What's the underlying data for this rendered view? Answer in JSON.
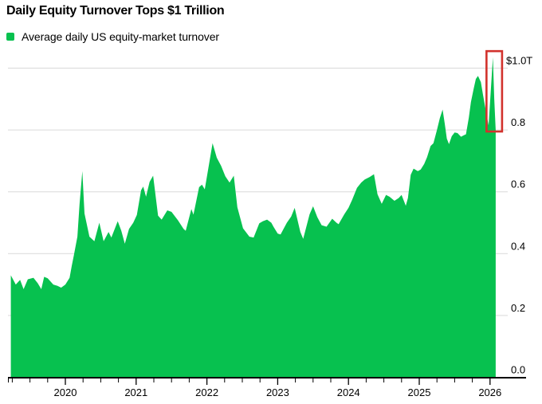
{
  "title": "Daily Equity Turnover Tops $1 Trillion",
  "legend": {
    "label": "Average daily US equity-market turnover",
    "swatch_icon": "green-square",
    "swatch_color": "#07c14f"
  },
  "colors": {
    "area_green": "#07c14f",
    "highlight_red": "#d2322d",
    "gridline": "#d9d9d9",
    "axis": "#000000",
    "text": "#000000",
    "background": "#ffffff"
  },
  "chart_data": {
    "type": "area",
    "title": "Daily Equity Turnover Tops $1 Trillion",
    "series_name": "Average daily US equity-market turnover",
    "x_unit": "year",
    "y_unit": "USD trillions per day",
    "xlim": [
      2019.15,
      2026.5
    ],
    "ylim": [
      0,
      1.07
    ],
    "grid": "horizontal",
    "legend_position": "top-left",
    "y_ticks": [
      {
        "value": 1.0,
        "label": "$1.0T"
      },
      {
        "value": 0.8,
        "label": "0.8"
      },
      {
        "value": 0.6,
        "label": "0.6"
      },
      {
        "value": 0.4,
        "label": "0.4"
      },
      {
        "value": 0.2,
        "label": "0.2"
      },
      {
        "value": 0.0,
        "label": "0.0"
      }
    ],
    "x_ticks": [
      {
        "value": 2020,
        "label": "2020"
      },
      {
        "value": 2021,
        "label": "2021"
      },
      {
        "value": 2022,
        "label": "2022"
      },
      {
        "value": 2023,
        "label": "2023"
      },
      {
        "value": 2024,
        "label": "2024"
      },
      {
        "value": 2025,
        "label": "2025"
      },
      {
        "value": 2026,
        "label": "2026"
      }
    ],
    "minor_tick_step": 0.25,
    "points": [
      [
        2019.23,
        0.33
      ],
      [
        2019.3,
        0.3
      ],
      [
        2019.36,
        0.315
      ],
      [
        2019.41,
        0.285
      ],
      [
        2019.47,
        0.317
      ],
      [
        2019.55,
        0.322
      ],
      [
        2019.61,
        0.304
      ],
      [
        2019.66,
        0.285
      ],
      [
        2019.7,
        0.325
      ],
      [
        2019.75,
        0.32
      ],
      [
        2019.83,
        0.3
      ],
      [
        2019.89,
        0.296
      ],
      [
        2019.94,
        0.29
      ],
      [
        2020.0,
        0.3
      ],
      [
        2020.06,
        0.322
      ],
      [
        2020.09,
        0.36
      ],
      [
        2020.12,
        0.395
      ],
      [
        2020.17,
        0.455
      ],
      [
        2020.2,
        0.56
      ],
      [
        2020.24,
        0.667
      ],
      [
        2020.27,
        0.53
      ],
      [
        2020.34,
        0.455
      ],
      [
        2020.41,
        0.44
      ],
      [
        2020.48,
        0.5
      ],
      [
        2020.54,
        0.44
      ],
      [
        2020.61,
        0.47
      ],
      [
        2020.65,
        0.452
      ],
      [
        2020.74,
        0.505
      ],
      [
        2020.79,
        0.474
      ],
      [
        2020.84,
        0.432
      ],
      [
        2020.9,
        0.48
      ],
      [
        2020.96,
        0.5
      ],
      [
        2021.01,
        0.525
      ],
      [
        2021.07,
        0.605
      ],
      [
        2021.1,
        0.617
      ],
      [
        2021.14,
        0.584
      ],
      [
        2021.19,
        0.632
      ],
      [
        2021.24,
        0.652
      ],
      [
        2021.31,
        0.523
      ],
      [
        2021.36,
        0.51
      ],
      [
        2021.44,
        0.54
      ],
      [
        2021.5,
        0.535
      ],
      [
        2021.59,
        0.508
      ],
      [
        2021.67,
        0.48
      ],
      [
        2021.7,
        0.474
      ],
      [
        2021.78,
        0.544
      ],
      [
        2021.81,
        0.526
      ],
      [
        2021.89,
        0.615
      ],
      [
        2021.93,
        0.623
      ],
      [
        2021.97,
        0.608
      ],
      [
        2022.03,
        0.69
      ],
      [
        2022.08,
        0.757
      ],
      [
        2022.14,
        0.71
      ],
      [
        2022.2,
        0.684
      ],
      [
        2022.26,
        0.65
      ],
      [
        2022.32,
        0.63
      ],
      [
        2022.38,
        0.652
      ],
      [
        2022.43,
        0.55
      ],
      [
        2022.51,
        0.482
      ],
      [
        2022.6,
        0.455
      ],
      [
        2022.66,
        0.452
      ],
      [
        2022.74,
        0.498
      ],
      [
        2022.79,
        0.505
      ],
      [
        2022.85,
        0.51
      ],
      [
        2022.91,
        0.5
      ],
      [
        2022.94,
        0.487
      ],
      [
        2023.0,
        0.465
      ],
      [
        2023.04,
        0.462
      ],
      [
        2023.13,
        0.5
      ],
      [
        2023.19,
        0.52
      ],
      [
        2023.24,
        0.548
      ],
      [
        2023.32,
        0.47
      ],
      [
        2023.36,
        0.448
      ],
      [
        2023.45,
        0.527
      ],
      [
        2023.5,
        0.553
      ],
      [
        2023.56,
        0.518
      ],
      [
        2023.62,
        0.492
      ],
      [
        2023.69,
        0.487
      ],
      [
        2023.77,
        0.513
      ],
      [
        2023.83,
        0.5
      ],
      [
        2023.86,
        0.495
      ],
      [
        2023.94,
        0.527
      ],
      [
        2024.0,
        0.548
      ],
      [
        2024.05,
        0.573
      ],
      [
        2024.12,
        0.613
      ],
      [
        2024.18,
        0.63
      ],
      [
        2024.23,
        0.64
      ],
      [
        2024.3,
        0.648
      ],
      [
        2024.36,
        0.657
      ],
      [
        2024.41,
        0.592
      ],
      [
        2024.47,
        0.561
      ],
      [
        2024.53,
        0.59
      ],
      [
        2024.58,
        0.584
      ],
      [
        2024.65,
        0.571
      ],
      [
        2024.71,
        0.58
      ],
      [
        2024.75,
        0.59
      ],
      [
        2024.81,
        0.555
      ],
      [
        2024.84,
        0.58
      ],
      [
        2024.88,
        0.655
      ],
      [
        2024.92,
        0.675
      ],
      [
        2024.98,
        0.667
      ],
      [
        2025.02,
        0.672
      ],
      [
        2025.07,
        0.69
      ],
      [
        2025.11,
        0.712
      ],
      [
        2025.16,
        0.748
      ],
      [
        2025.2,
        0.757
      ],
      [
        2025.25,
        0.8
      ],
      [
        2025.29,
        0.838
      ],
      [
        2025.33,
        0.866
      ],
      [
        2025.36,
        0.82
      ],
      [
        2025.39,
        0.772
      ],
      [
        2025.42,
        0.754
      ],
      [
        2025.46,
        0.78
      ],
      [
        2025.5,
        0.792
      ],
      [
        2025.54,
        0.79
      ],
      [
        2025.59,
        0.778
      ],
      [
        2025.63,
        0.783
      ],
      [
        2025.66,
        0.786
      ],
      [
        2025.7,
        0.84
      ],
      [
        2025.73,
        0.89
      ],
      [
        2025.77,
        0.935
      ],
      [
        2025.8,
        0.965
      ],
      [
        2025.83,
        0.975
      ],
      [
        2025.87,
        0.955
      ],
      [
        2025.9,
        0.915
      ],
      [
        2025.95,
        0.85
      ],
      [
        2025.98,
        0.815
      ],
      [
        2026.04,
        1.035
      ],
      [
        2026.06,
        0.9
      ],
      [
        2026.08,
        0.8
      ]
    ],
    "annotations": [
      {
        "type": "highlight-box",
        "x_range": [
          2025.95,
          2026.17
        ],
        "y_range": [
          0.795,
          1.055
        ],
        "color": "#d2322d"
      }
    ]
  }
}
